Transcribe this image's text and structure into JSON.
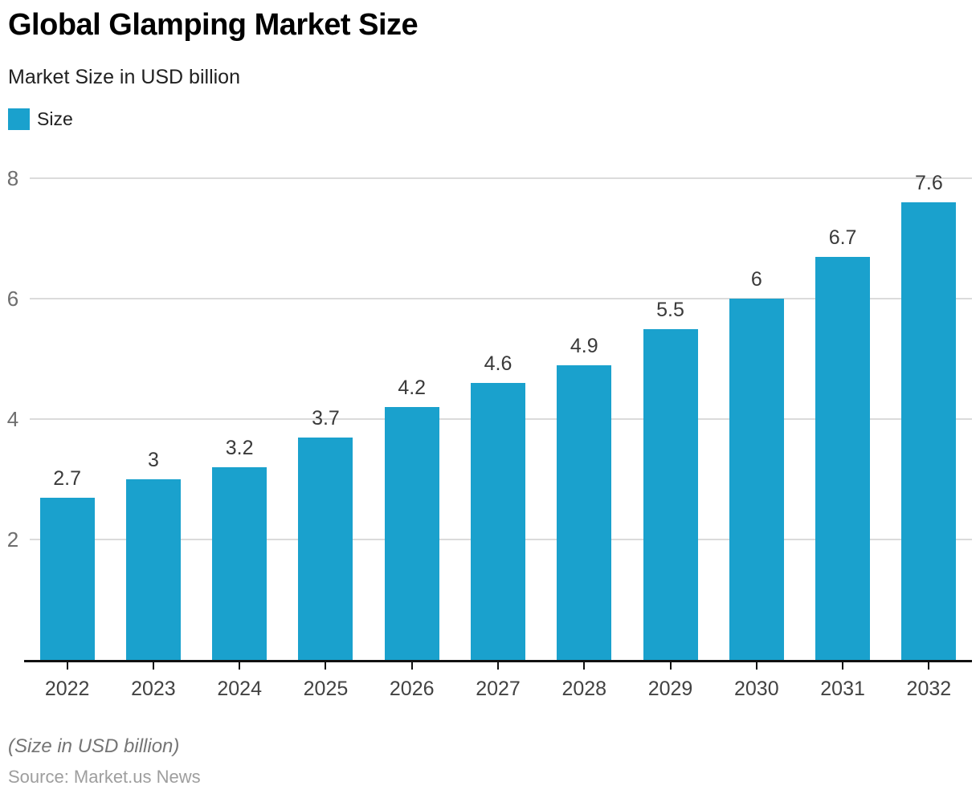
{
  "header": {
    "title": "Global Glamping Market Size",
    "subtitle": "Market Size in USD billion"
  },
  "legend": {
    "label": "Size",
    "swatch_color": "#1AA1CD"
  },
  "chart_data": {
    "type": "bar",
    "title": "Global Glamping Market Size",
    "subtitle": "Market Size in USD billion",
    "categories": [
      "2022",
      "2023",
      "2024",
      "2025",
      "2026",
      "2027",
      "2028",
      "2029",
      "2030",
      "2031",
      "2032"
    ],
    "series": [
      {
        "name": "Size",
        "values": [
          2.7,
          3,
          3.2,
          3.7,
          4.2,
          4.6,
          4.9,
          5.5,
          6,
          6.7,
          7.6
        ]
      }
    ],
    "value_labels": [
      "2.7",
      "3",
      "3.2",
      "3.7",
      "4.2",
      "4.6",
      "4.9",
      "5.5",
      "6",
      "6.7",
      "7.6"
    ],
    "xlabel": "",
    "ylabel": "",
    "ylim": [
      0,
      8
    ],
    "yticks": [
      2,
      4,
      6,
      8
    ],
    "grid": true,
    "legend_position": "top-left",
    "bar_color": "#1AA1CD",
    "gridline_color": "#dbdbdb",
    "axis_color": "#111111"
  },
  "footer": {
    "note": "(Size in USD billion)",
    "source": "Source: Market.us News"
  }
}
